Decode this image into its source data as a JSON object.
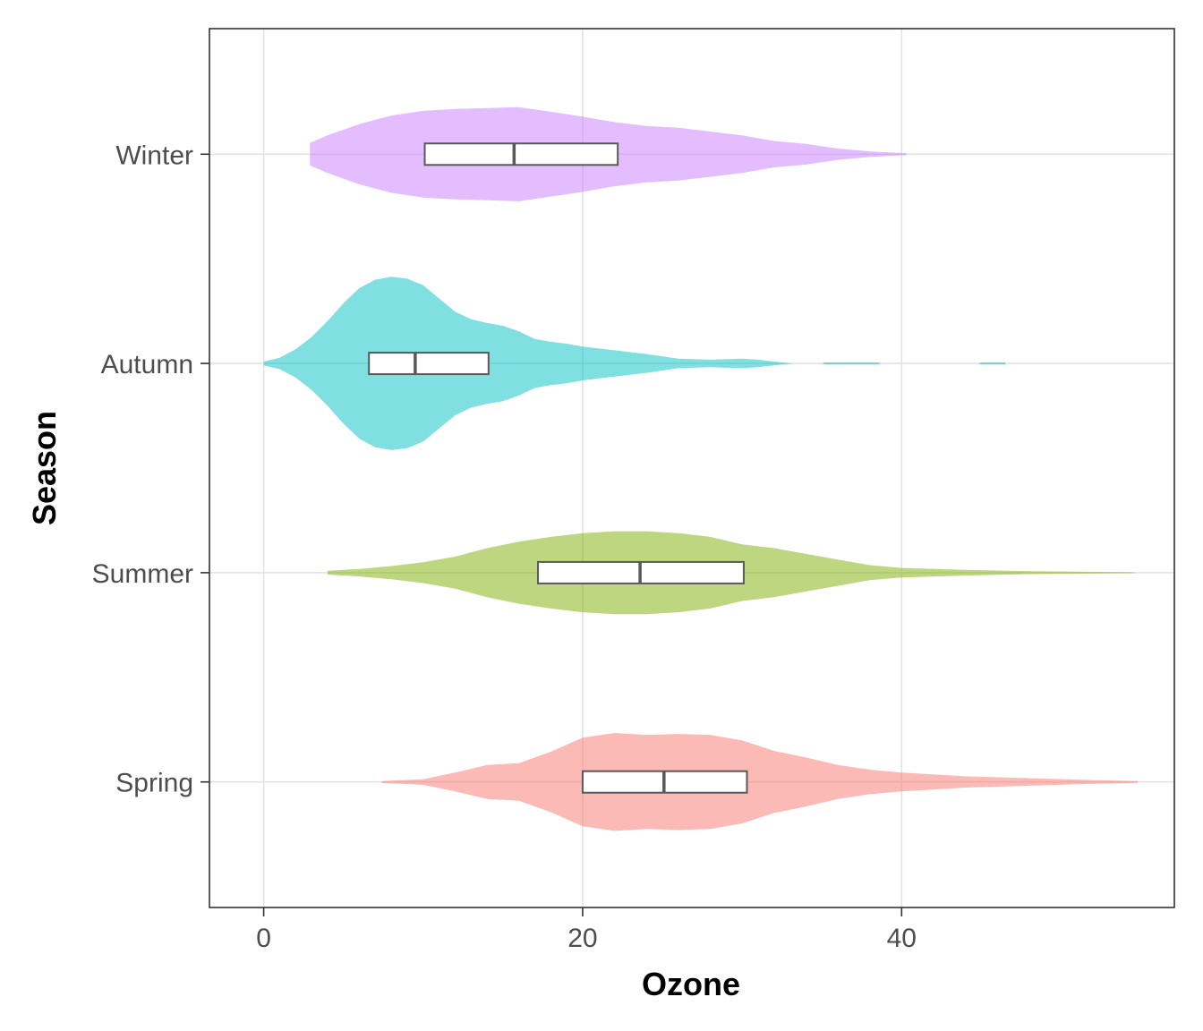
{
  "chart_data": {
    "type": "violin",
    "orientation": "horizontal",
    "xlabel": "Ozone",
    "ylabel": "Season",
    "xlim": [
      -3.4,
      57.1
    ],
    "xticks": [
      0,
      20,
      40
    ],
    "categories": [
      "Spring",
      "Summer",
      "Autumn",
      "Winter"
    ],
    "grid": true,
    "legend": "none",
    "series": [
      {
        "name": "Spring",
        "color": "#F8766D",
        "min": 7.4,
        "max": 54.8,
        "box": {
          "q1": 20.0,
          "median": 25.1,
          "q3": 30.3
        },
        "density": [
          [
            7.4,
            0.01
          ],
          [
            10,
            0.03
          ],
          [
            12,
            0.1
          ],
          [
            14,
            0.18
          ],
          [
            16,
            0.2
          ],
          [
            18,
            0.32
          ],
          [
            20,
            0.47
          ],
          [
            22,
            0.52
          ],
          [
            24,
            0.5
          ],
          [
            26,
            0.51
          ],
          [
            28,
            0.5
          ],
          [
            30,
            0.44
          ],
          [
            32,
            0.33
          ],
          [
            34,
            0.26
          ],
          [
            36,
            0.18
          ],
          [
            38,
            0.13
          ],
          [
            40,
            0.1
          ],
          [
            44,
            0.06
          ],
          [
            48,
            0.04
          ],
          [
            52,
            0.02
          ],
          [
            54.8,
            0.01
          ]
        ]
      },
      {
        "name": "Summer",
        "color": "#7CAE00",
        "min": 4.0,
        "max": 54.6,
        "box": {
          "q1": 17.2,
          "median": 23.6,
          "q3": 30.1
        },
        "density": [
          [
            4,
            0.02
          ],
          [
            6,
            0.04
          ],
          [
            8,
            0.07
          ],
          [
            10,
            0.11
          ],
          [
            12,
            0.17
          ],
          [
            14,
            0.26
          ],
          [
            16,
            0.33
          ],
          [
            18,
            0.38
          ],
          [
            20,
            0.42
          ],
          [
            22,
            0.44
          ],
          [
            24,
            0.44
          ],
          [
            26,
            0.42
          ],
          [
            28,
            0.38
          ],
          [
            30,
            0.3
          ],
          [
            32,
            0.26
          ],
          [
            34,
            0.2
          ],
          [
            36,
            0.14
          ],
          [
            38,
            0.08
          ],
          [
            40,
            0.05
          ],
          [
            44,
            0.03
          ],
          [
            48,
            0.015
          ],
          [
            54.6,
            0.005
          ]
        ]
      },
      {
        "name": "Autumn",
        "color": "#00BFC4",
        "min": 0.0,
        "max": 46.5,
        "box": {
          "q1": 6.6,
          "median": 9.5,
          "q3": 14.1
        },
        "density": [
          [
            0,
            0.02
          ],
          [
            1,
            0.06
          ],
          [
            2,
            0.15
          ],
          [
            3,
            0.28
          ],
          [
            4,
            0.45
          ],
          [
            5,
            0.64
          ],
          [
            6,
            0.8
          ],
          [
            7,
            0.89
          ],
          [
            8,
            0.92
          ],
          [
            9,
            0.9
          ],
          [
            10,
            0.83
          ],
          [
            11,
            0.69
          ],
          [
            12,
            0.55
          ],
          [
            13,
            0.47
          ],
          [
            14,
            0.43
          ],
          [
            15,
            0.4
          ],
          [
            16,
            0.34
          ],
          [
            17,
            0.26
          ],
          [
            18,
            0.23
          ],
          [
            19,
            0.21
          ],
          [
            20,
            0.18
          ],
          [
            22,
            0.14
          ],
          [
            24,
            0.1
          ],
          [
            26,
            0.05
          ],
          [
            28,
            0.04
          ],
          [
            30,
            0.05
          ],
          [
            31,
            0.04
          ],
          [
            32,
            0.02
          ],
          [
            32.8,
            0.006
          ],
          [
            33.2,
            0.0
          ],
          [
            35,
            0.0
          ],
          [
            35.2,
            0.01
          ],
          [
            38.5,
            0.01
          ],
          [
            38.7,
            0.0
          ],
          [
            44.8,
            0.0
          ],
          [
            45,
            0.01
          ],
          [
            46.5,
            0.01
          ]
        ]
      },
      {
        "name": "Winter",
        "color": "#C77CFF",
        "min": 2.9,
        "max": 40.3,
        "box": {
          "q1": 10.1,
          "median": 15.7,
          "q3": 22.2
        },
        "density": [
          [
            2.9,
            0.12
          ],
          [
            4,
            0.2
          ],
          [
            6,
            0.32
          ],
          [
            8,
            0.41
          ],
          [
            10,
            0.46
          ],
          [
            12,
            0.48
          ],
          [
            14,
            0.49
          ],
          [
            16,
            0.5
          ],
          [
            18,
            0.45
          ],
          [
            20,
            0.4
          ],
          [
            22,
            0.34
          ],
          [
            24,
            0.3
          ],
          [
            26,
            0.28
          ],
          [
            28,
            0.24
          ],
          [
            30,
            0.2
          ],
          [
            32,
            0.14
          ],
          [
            34,
            0.11
          ],
          [
            36,
            0.06
          ],
          [
            38,
            0.03
          ],
          [
            40.3,
            0.01
          ]
        ]
      }
    ]
  }
}
